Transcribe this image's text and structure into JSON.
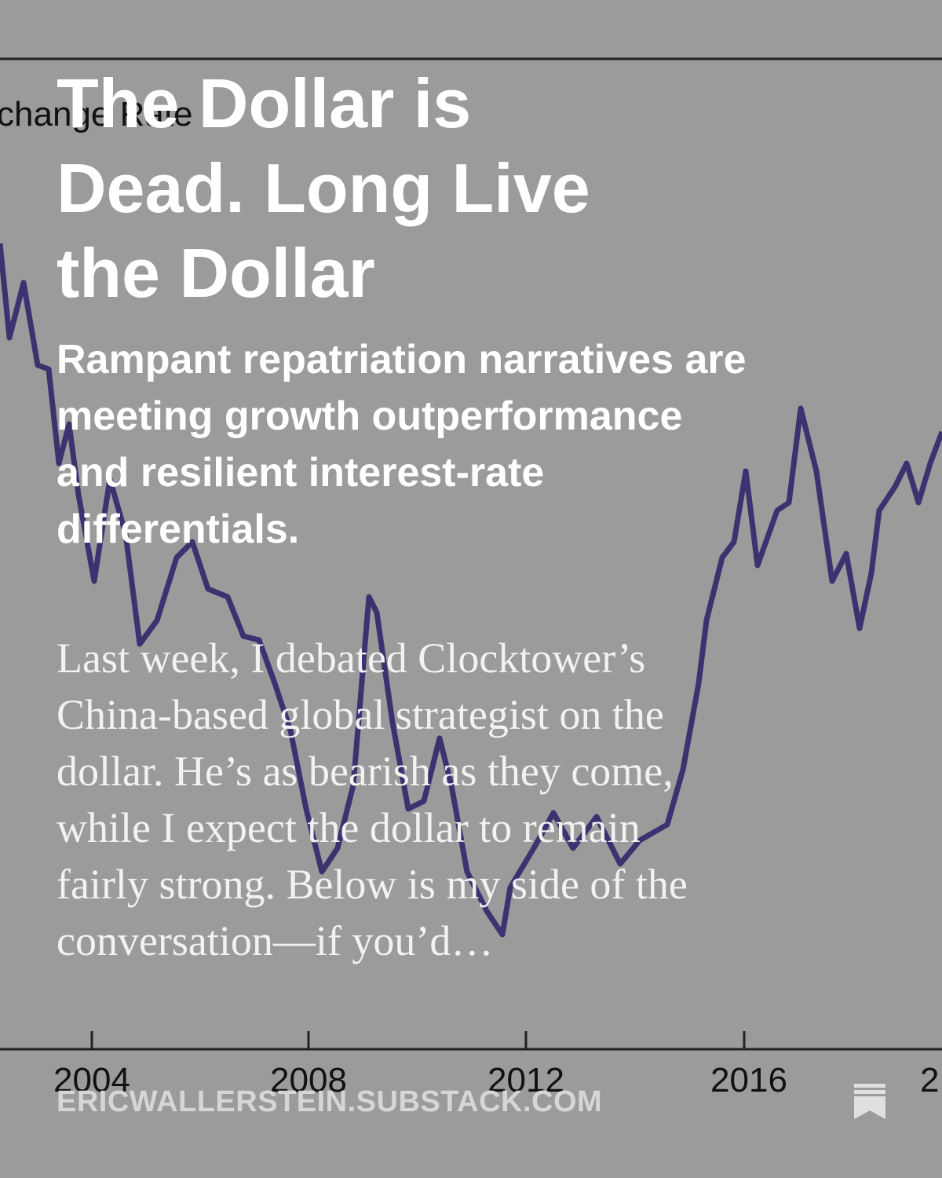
{
  "background": {
    "axis_label": "change Rate",
    "x_tick_labels": [
      "2004",
      "2008",
      "2012",
      "2016",
      "2"
    ]
  },
  "post": {
    "title": "The Dollar is Dead. Long Live the Dollar",
    "subtitle": "Rampant repatriation narratives are meeting growth outperformance and resilient interest-rate differentials.",
    "excerpt": "Last week, I debated Clocktower’s China-based global strategist on the dollar. He’s as bearish as they come, while I expect the dollar to remain fairly strong. Below is my side of the conversation—if you’d…",
    "domain": "ERICWALLERSTEIN.SUBSTACK.COM"
  }
}
